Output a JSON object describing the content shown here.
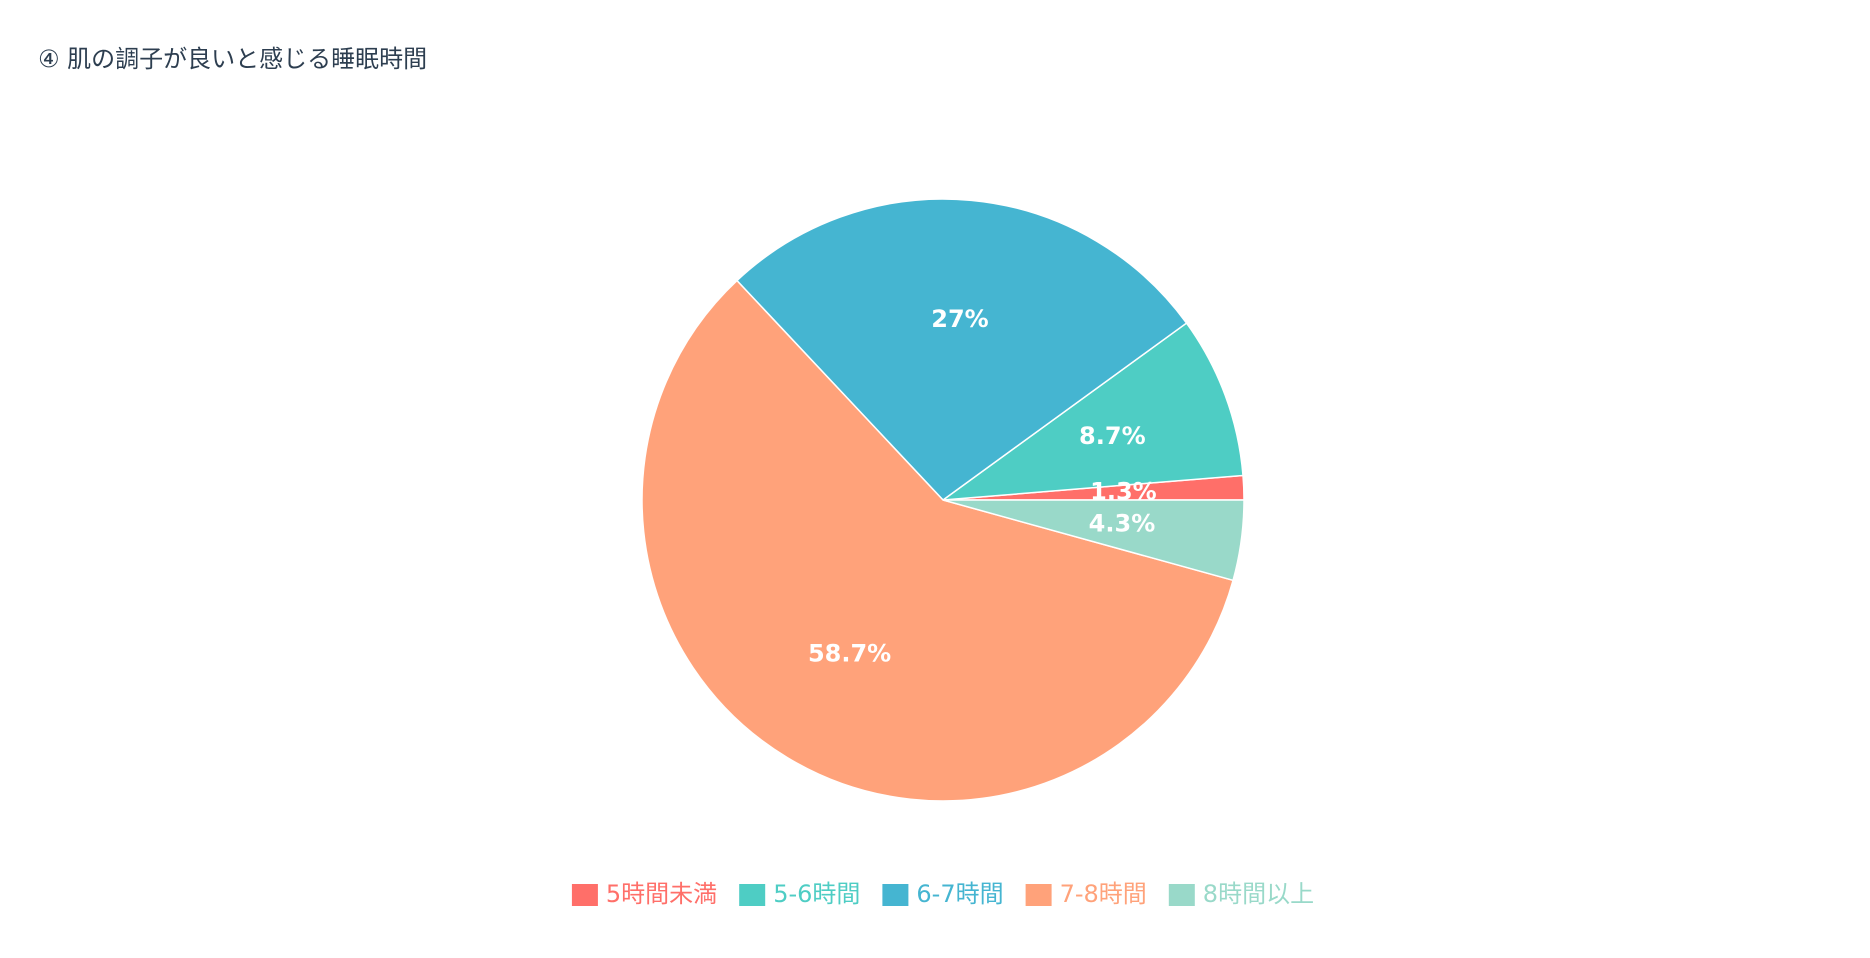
{
  "chart_data": {
    "type": "pie",
    "title": "④ 肌の調子が良いと感じる睡眠時間",
    "categories": [
      "5時間未満",
      "5-6時間",
      "6-7時間",
      "7-8時間",
      "8時間以上"
    ],
    "values": [
      1.3,
      8.7,
      27,
      58.7,
      4.3
    ],
    "value_labels": [
      "1.3%",
      "8.7%",
      "27%",
      "58.7%",
      "4.3%"
    ],
    "colors": [
      "#ff6f69",
      "#4ecdc4",
      "#45b5d1",
      "#ffa27a",
      "#99d9c9"
    ],
    "legend": "bottom"
  }
}
